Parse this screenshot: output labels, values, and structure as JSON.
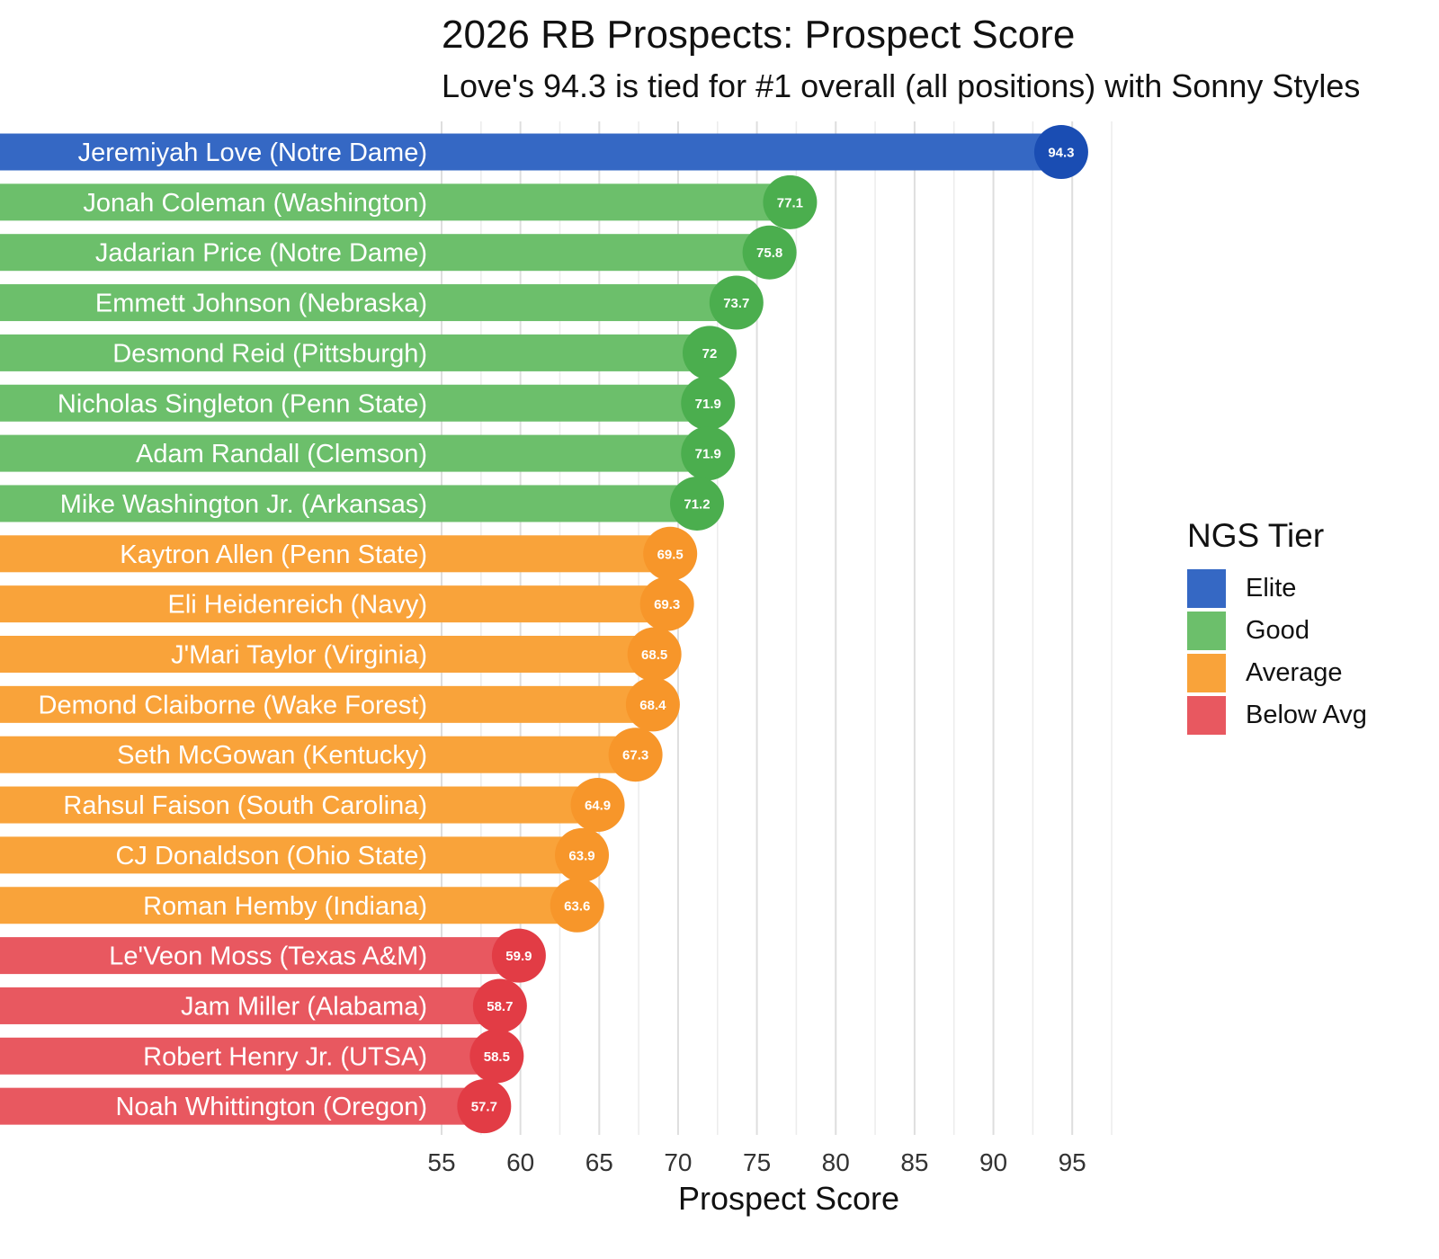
{
  "chart_data": {
    "type": "bar",
    "orientation": "horizontal",
    "title": "2026 RB Prospects: Prospect Score",
    "subtitle": "Love's 94.3 is tied for #1 overall (all positions) with Sonny Styles",
    "xlabel": "Prospect Score",
    "ylabel": "",
    "xlim": [
      55,
      97.5
    ],
    "x_ticks": [
      55,
      60,
      65,
      70,
      75,
      80,
      85,
      90,
      95
    ],
    "grid": true,
    "legend": {
      "title": "NGS Tier",
      "placement": "right",
      "entries": [
        {
          "name": "Elite",
          "color": "#3568c4"
        },
        {
          "name": "Good",
          "color": "#6cbf6b"
        },
        {
          "name": "Average",
          "color": "#f9a33a"
        },
        {
          "name": "Below Avg",
          "color": "#e85860"
        }
      ]
    },
    "tier_point_colors": {
      "Elite": "#1a4db3",
      "Good": "#4bae4e",
      "Average": "#f7962a",
      "Below Avg": "#e23c45"
    },
    "categories": [
      "Jeremiyah Love (Notre Dame)",
      "Jonah Coleman (Washington)",
      "Jadarian Price (Notre Dame)",
      "Emmett Johnson (Nebraska)",
      "Desmond Reid (Pittsburgh)",
      "Nicholas Singleton (Penn State)",
      "Adam Randall (Clemson)",
      "Mike Washington Jr. (Arkansas)",
      "Kaytron Allen (Penn State)",
      "Eli Heidenreich (Navy)",
      "J'Mari Taylor (Virginia)",
      "Demond Claiborne (Wake Forest)",
      "Seth McGowan (Kentucky)",
      "Rahsul Faison (South Carolina)",
      "CJ Donaldson (Ohio State)",
      "Roman Hemby (Indiana)",
      "Le'Veon Moss (Texas A&M)",
      "Jam Miller (Alabama)",
      "Robert Henry Jr. (UTSA)",
      "Noah Whittington (Oregon)"
    ],
    "values": [
      94.3,
      77.1,
      75.8,
      73.7,
      72,
      71.9,
      71.9,
      71.2,
      69.5,
      69.3,
      68.5,
      68.4,
      67.3,
      64.9,
      63.9,
      63.6,
      59.9,
      58.7,
      58.5,
      57.7
    ],
    "value_labels": [
      "94.3",
      "77.1",
      "75.8",
      "73.7",
      "72",
      "71.9",
      "71.9",
      "71.2",
      "69.5",
      "69.3",
      "68.5",
      "68.4",
      "67.3",
      "64.9",
      "63.9",
      "63.6",
      "59.9",
      "58.7",
      "58.5",
      "57.7"
    ],
    "tiers": [
      "Elite",
      "Good",
      "Good",
      "Good",
      "Good",
      "Good",
      "Good",
      "Good",
      "Average",
      "Average",
      "Average",
      "Average",
      "Average",
      "Average",
      "Average",
      "Average",
      "Below Avg",
      "Below Avg",
      "Below Avg",
      "Below Avg"
    ]
  }
}
